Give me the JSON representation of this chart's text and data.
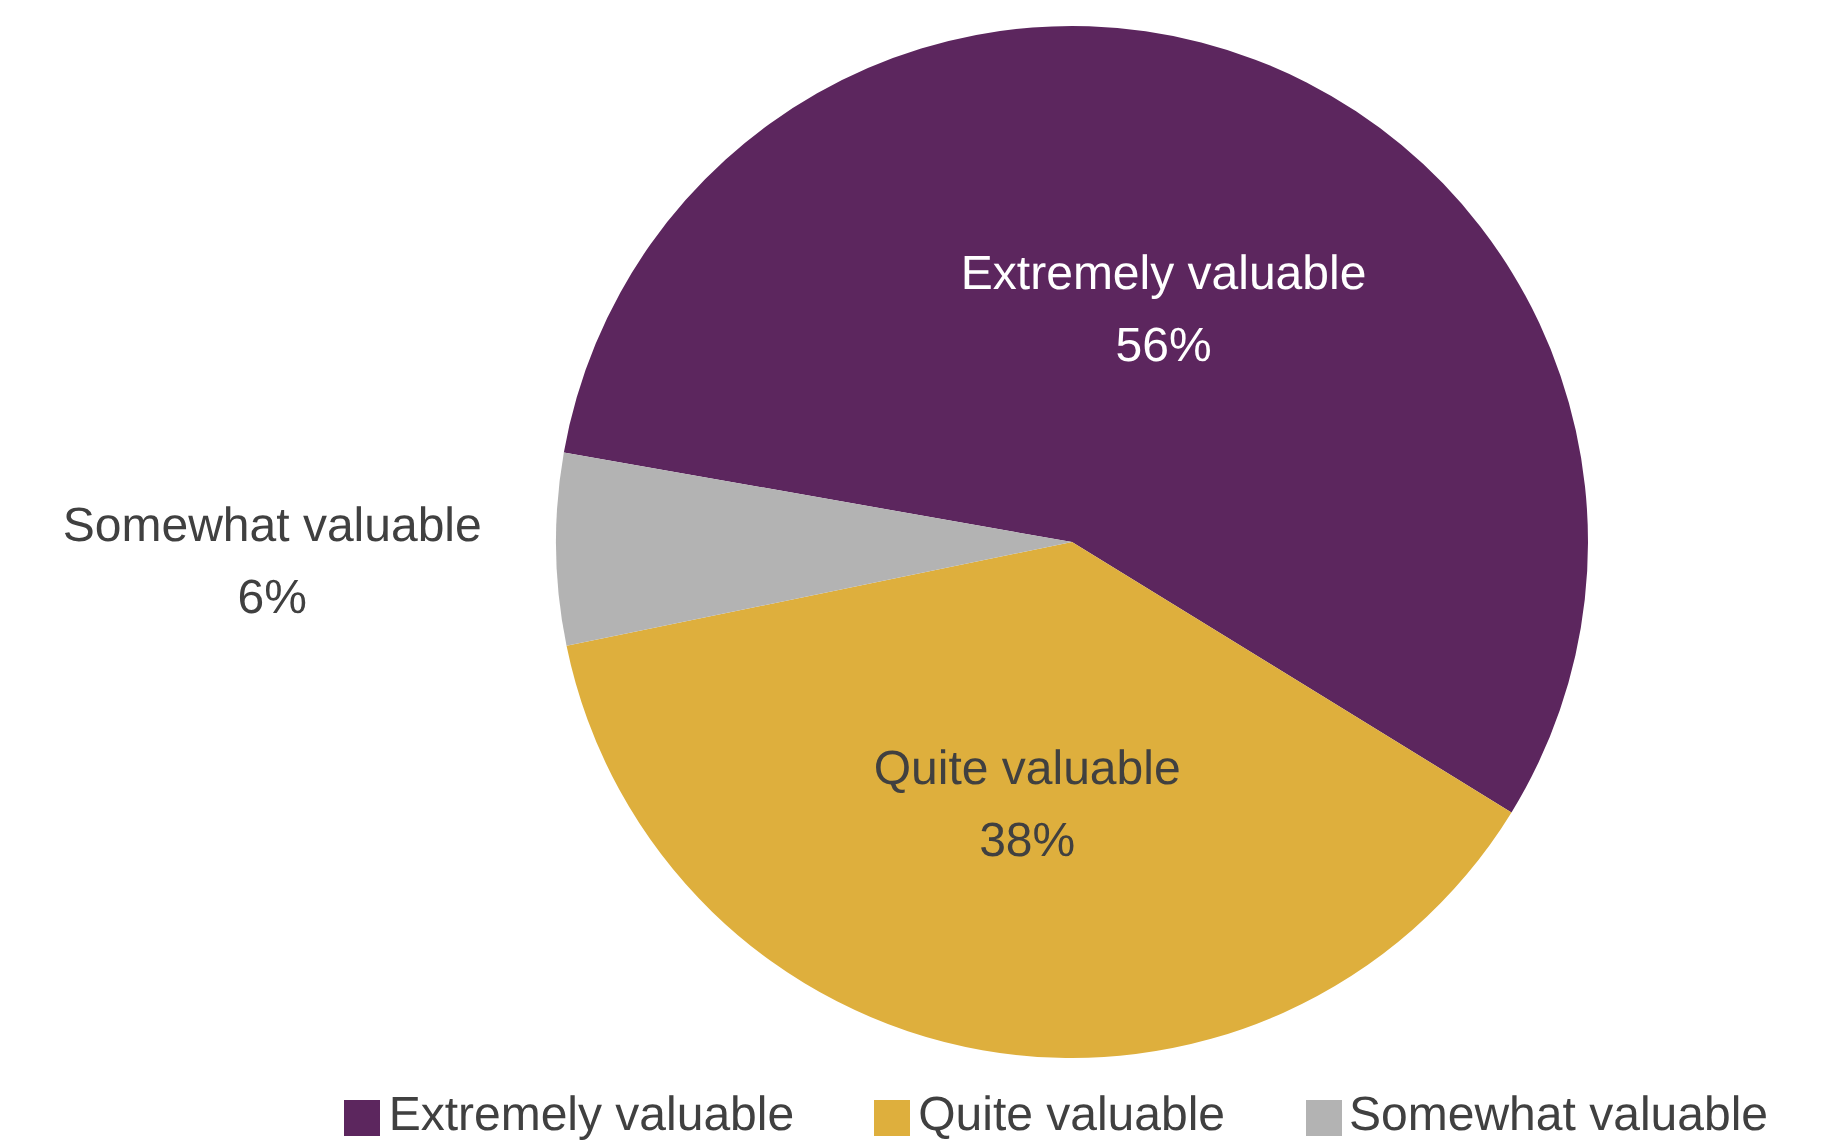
{
  "chart_data": {
    "type": "pie",
    "categories": [
      "Extremely valuable",
      "Quite valuable",
      "Somewhat valuable"
    ],
    "values": [
      56,
      38,
      6
    ],
    "colors": [
      "#5c265e",
      "#deaf3d",
      "#b3b3b3"
    ],
    "value_labels": [
      "56%",
      "38%",
      "6%"
    ],
    "legend": "bottom"
  }
}
